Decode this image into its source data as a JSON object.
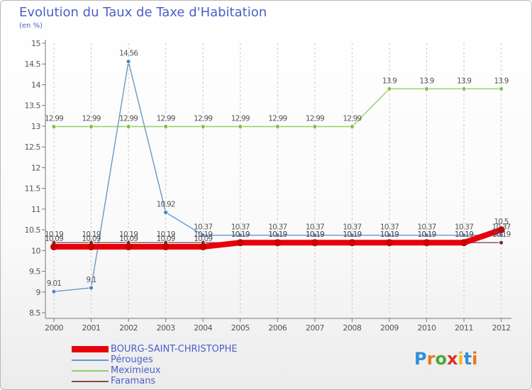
{
  "title": "Evolution du Taux de Taxe d'Habitation",
  "subtitle": "(en %)",
  "logo_text": "Proxiti",
  "chart_data": {
    "type": "line",
    "title": "Evolution du Taux de Taxe d'Habitation",
    "subtitle": "(en %)",
    "xlabel": "",
    "ylabel": "",
    "categories": [
      "2000",
      "2001",
      "2002",
      "2003",
      "2004",
      "2005",
      "2006",
      "2007",
      "2008",
      "2009",
      "2010",
      "2011",
      "2012"
    ],
    "ylim": [
      8.5,
      15
    ],
    "yticks": [
      "8.5",
      "9",
      "9.5",
      "10",
      "10.5",
      "11",
      "11.5",
      "12",
      "12.5",
      "13",
      "13.5",
      "14",
      "14.5",
      "15"
    ],
    "grid": "vertical",
    "legend_position": "bottom-left",
    "series": [
      {
        "name": "BOURG-SAINT-CHRISTOPHE",
        "color": "#e8000b",
        "values": [
          10.09,
          10.09,
          10.09,
          10.09,
          10.09,
          10.19,
          10.19,
          10.19,
          10.19,
          10.19,
          10.19,
          10.19,
          10.5
        ],
        "labels": [
          "10.09",
          "10.09",
          "10.09",
          "10.09",
          "10.09",
          "10.19",
          "10.19",
          "10.19",
          "10.19",
          "10.19",
          "10.19",
          "10.19",
          "10.5"
        ]
      },
      {
        "name": "Pérouges",
        "color": "#6699cc",
        "values": [
          9.01,
          9.1,
          14.56,
          10.92,
          10.37,
          10.37,
          10.37,
          10.37,
          10.37,
          10.37,
          10.37,
          10.37,
          10.37
        ],
        "labels": [
          "9.01",
          "9.1",
          "14.56",
          "10.92",
          "10.37",
          "10.37",
          "10.37",
          "10.37",
          "10.37",
          "10.37",
          "10.37",
          "10.37",
          "10.37"
        ]
      },
      {
        "name": "Meximieux",
        "color": "#99cc66",
        "values": [
          12.99,
          12.99,
          12.99,
          12.99,
          12.99,
          12.99,
          12.99,
          12.99,
          12.99,
          13.9,
          13.9,
          13.9,
          13.9
        ],
        "labels": [
          "12.99",
          "12.99",
          "12.99",
          "12.99",
          "12.99",
          "12.99",
          "12.99",
          "12.99",
          "12.99",
          "13.9",
          "13.9",
          "13.9",
          "13.9"
        ]
      },
      {
        "name": "Faramans",
        "color": "#8b4a4a",
        "values": [
          10.19,
          10.19,
          10.19,
          10.19,
          10.19,
          10.19,
          10.19,
          10.19,
          10.19,
          10.19,
          10.19,
          10.19,
          10.19
        ],
        "labels": [
          "10.19",
          "10.19",
          "10.19",
          "10.19",
          "10.19",
          "10.19",
          "10.19",
          "10.19",
          "10.19",
          "10.19",
          "10.19",
          "10.19",
          "10.19"
        ]
      }
    ]
  }
}
